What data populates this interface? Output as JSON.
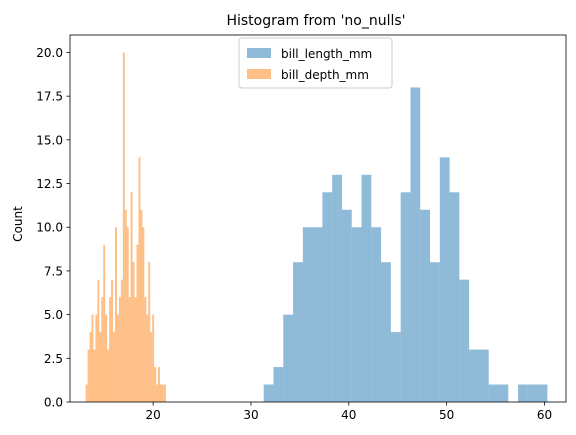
{
  "chart_data": {
    "type": "histogram",
    "title": "Histogram from 'no_nulls'",
    "xlabel": "",
    "ylabel": "Count",
    "xlim": [
      11.5,
      62.2
    ],
    "ylim": [
      0,
      21
    ],
    "xticks": [
      "20",
      "30",
      "40",
      "50",
      "60"
    ],
    "yticks": [
      "0.0",
      "2.5",
      "5.0",
      "7.5",
      "10.0",
      "12.5",
      "15.0",
      "17.5",
      "20.0"
    ],
    "legend_position": "upper center",
    "grid": false,
    "series": [
      {
        "name": "bill_length_mm",
        "color": "#1f77b4",
        "opacity": 0.5,
        "bins": [
          [
            31.3,
            32.3,
            1
          ],
          [
            32.3,
            33.3,
            2
          ],
          [
            33.3,
            34.3,
            5
          ],
          [
            34.3,
            35.3,
            8
          ],
          [
            35.3,
            36.3,
            10
          ],
          [
            36.3,
            37.3,
            10
          ],
          [
            37.3,
            38.3,
            12
          ],
          [
            38.3,
            39.3,
            13
          ],
          [
            39.3,
            40.3,
            11
          ],
          [
            40.3,
            41.3,
            10
          ],
          [
            41.3,
            42.3,
            13
          ],
          [
            42.3,
            43.3,
            10
          ],
          [
            43.3,
            44.3,
            8
          ],
          [
            44.3,
            45.3,
            4
          ],
          [
            45.3,
            46.3,
            12
          ],
          [
            46.3,
            47.3,
            18
          ],
          [
            47.3,
            48.3,
            11
          ],
          [
            48.3,
            49.3,
            8
          ],
          [
            49.3,
            50.3,
            14
          ],
          [
            50.3,
            51.3,
            12
          ],
          [
            51.3,
            52.3,
            7
          ],
          [
            52.3,
            53.3,
            3
          ],
          [
            53.3,
            54.3,
            3
          ],
          [
            54.3,
            55.3,
            1
          ],
          [
            55.3,
            56.3,
            1
          ],
          [
            56.3,
            57.3,
            0
          ],
          [
            57.3,
            58.3,
            1
          ],
          [
            58.3,
            59.3,
            1
          ],
          [
            59.3,
            60.3,
            1
          ]
        ]
      },
      {
        "name": "bill_depth_mm",
        "color": "#ff7f0e",
        "opacity": 0.5,
        "bins": [
          [
            13.1,
            13.3,
            1
          ],
          [
            13.3,
            13.5,
            3
          ],
          [
            13.5,
            13.7,
            4
          ],
          [
            13.7,
            13.9,
            5
          ],
          [
            13.9,
            14.1,
            3
          ],
          [
            14.1,
            14.3,
            5
          ],
          [
            14.3,
            14.5,
            7
          ],
          [
            14.5,
            14.7,
            4
          ],
          [
            14.7,
            14.9,
            6
          ],
          [
            14.9,
            15.1,
            9
          ],
          [
            15.1,
            15.3,
            5
          ],
          [
            15.3,
            15.5,
            3
          ],
          [
            15.5,
            15.7,
            6
          ],
          [
            15.7,
            15.9,
            7
          ],
          [
            15.9,
            16.1,
            4
          ],
          [
            16.1,
            16.3,
            10
          ],
          [
            16.3,
            16.5,
            5
          ],
          [
            16.5,
            16.7,
            6
          ],
          [
            16.7,
            16.9,
            7
          ],
          [
            16.9,
            17.1,
            20
          ],
          [
            17.1,
            17.3,
            11
          ],
          [
            17.3,
            17.5,
            10
          ],
          [
            17.5,
            17.7,
            6
          ],
          [
            17.7,
            17.9,
            12
          ],
          [
            17.9,
            18.1,
            8
          ],
          [
            18.1,
            18.3,
            6
          ],
          [
            18.3,
            18.5,
            9
          ],
          [
            18.5,
            18.7,
            14
          ],
          [
            18.7,
            18.9,
            11
          ],
          [
            18.9,
            19.1,
            10
          ],
          [
            19.1,
            19.3,
            6
          ],
          [
            19.3,
            19.5,
            5
          ],
          [
            19.5,
            19.7,
            8
          ],
          [
            19.7,
            19.9,
            4
          ],
          [
            19.9,
            20.1,
            5
          ],
          [
            20.1,
            20.3,
            2
          ],
          [
            20.3,
            20.5,
            1
          ],
          [
            20.5,
            20.7,
            2
          ],
          [
            20.7,
            20.9,
            1
          ],
          [
            20.9,
            21.1,
            1
          ],
          [
            21.1,
            21.3,
            1
          ]
        ]
      }
    ]
  }
}
